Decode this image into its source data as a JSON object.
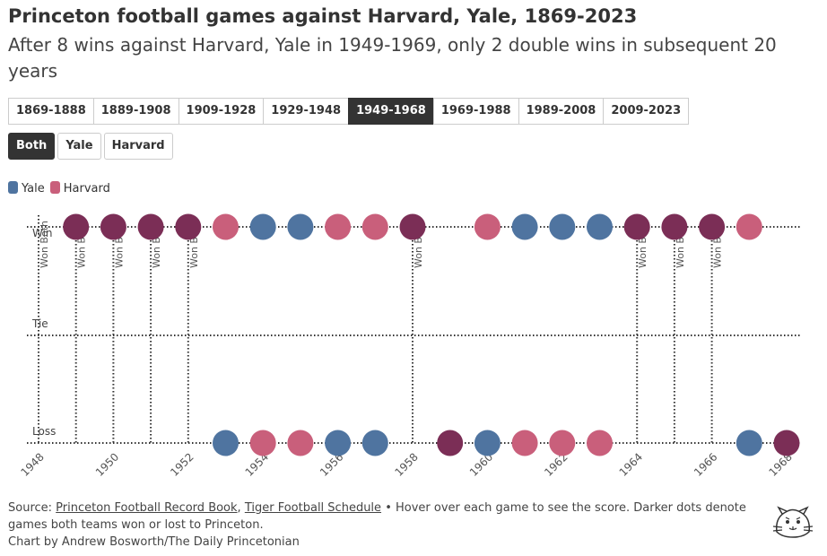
{
  "header": {
    "title": "Princeton football games against Harvard, Yale, 1869-2023",
    "subtitle": "After 8 wins against Harvard, Yale in 1949-1969, only 2 double wins in subsequent 20 years"
  },
  "controls": {
    "periods": [
      "1869-1888",
      "1889-1908",
      "1909-1928",
      "1929-1948",
      "1949-1968",
      "1969-1988",
      "1989-2008",
      "2009-2023"
    ],
    "active_period": "1949-1968",
    "teams": [
      "Both",
      "Yale",
      "Harvard"
    ],
    "active_team": "Both"
  },
  "chart_data": {
    "type": "scatter",
    "x_axis_type": "year",
    "xlim": [
      1948,
      1968
    ],
    "xticks": [
      1948,
      1950,
      1952,
      1954,
      1956,
      1958,
      1960,
      1962,
      1964,
      1966,
      1968
    ],
    "y_categories": [
      "Win",
      "Tie",
      "Loss"
    ],
    "both_color": "#7b2e56",
    "series": [
      {
        "name": "Yale",
        "color": "#4f74a0",
        "x": [
          1949,
          1950,
          1951,
          1952,
          1953,
          1954,
          1955,
          1956,
          1957,
          1958,
          1959,
          1960,
          1961,
          1962,
          1963,
          1964,
          1965,
          1966,
          1967,
          1968
        ],
        "values": [
          "Win",
          "Win",
          "Win",
          "Win",
          "Loss",
          "Win",
          "Win",
          "Loss",
          "Loss",
          "Win",
          "Loss",
          "Loss",
          "Win",
          "Win",
          "Win",
          "Win",
          "Win",
          "Win",
          "Loss",
          "Loss"
        ]
      },
      {
        "name": "Harvard",
        "color": "#c95f7b",
        "x": [
          1949,
          1950,
          1951,
          1952,
          1953,
          1954,
          1955,
          1956,
          1957,
          1958,
          1959,
          1960,
          1961,
          1962,
          1963,
          1964,
          1965,
          1966,
          1967,
          1968
        ],
        "values": [
          "Win",
          "Win",
          "Win",
          "Win",
          "Win",
          "Loss",
          "Loss",
          "Win",
          "Win",
          "Win",
          "Loss",
          "Win",
          "Loss",
          "Loss",
          "Loss",
          "Win",
          "Win",
          "Win",
          "Win",
          "Loss"
        ]
      }
    ],
    "annotations": [
      {
        "x": 1948,
        "text": "Won Both"
      },
      {
        "x": 1949,
        "text": "Won Both"
      },
      {
        "x": 1950,
        "text": "Won Both"
      },
      {
        "x": 1951,
        "text": "Won Both"
      },
      {
        "x": 1952,
        "text": "Won Both"
      },
      {
        "x": 1958,
        "text": "Won Both"
      },
      {
        "x": 1964,
        "text": "Won Both"
      },
      {
        "x": 1965,
        "text": "Won Both"
      },
      {
        "x": 1966,
        "text": "Won Both"
      }
    ]
  },
  "footer": {
    "source_label": "Source:",
    "links": [
      "Princeton Football Record Book",
      "Tiger Football Schedule"
    ],
    "link_separator": ",",
    "note": "• Hover over each game to see the score. Darker dots denote games both teams won or lost to Princeton.",
    "credit": "Chart by Andrew Bosworth/The Daily Princetonian"
  }
}
